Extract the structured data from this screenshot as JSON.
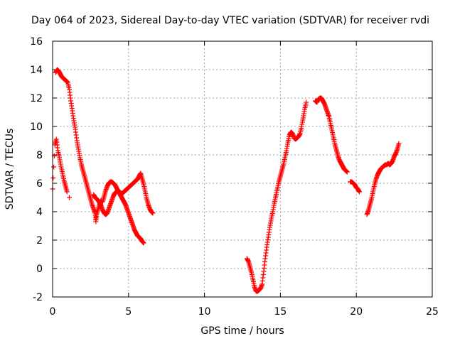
{
  "chart_data": {
    "type": "scatter",
    "title": "Day 064 of 2023, Sidereal Day-to-day VTEC variation (SDTVAR) for receiver rvdi",
    "xlabel": "GPS time / hours",
    "ylabel": "SDTVAR / TECUs",
    "xlim": [
      0,
      25
    ],
    "ylim": [
      -2,
      16
    ],
    "xticks": [
      "0",
      "5",
      "10",
      "15",
      "20",
      "25"
    ],
    "yticks": [
      "-2",
      "0",
      "2",
      "4",
      "6",
      "8",
      "10",
      "12",
      "14",
      "16"
    ],
    "grid": true,
    "marker": "+",
    "color": "#ff0000",
    "series": [
      {
        "points": [
          [
            0.0,
            5.6
          ],
          [
            0.15,
            8.7
          ],
          [
            0.25,
            9.1
          ],
          [
            0.35,
            8.3
          ],
          [
            0.45,
            7.8
          ],
          [
            0.55,
            7.2
          ],
          [
            0.65,
            6.7
          ],
          [
            0.75,
            6.2
          ],
          [
            0.85,
            5.8
          ],
          [
            0.95,
            5.4
          ],
          [
            1.1,
            5.0
          ]
        ]
      },
      {
        "points": [
          [
            0.2,
            13.8
          ],
          [
            0.3,
            14.0
          ],
          [
            0.4,
            13.9
          ],
          [
            0.5,
            13.7
          ],
          [
            0.6,
            13.5
          ],
          [
            0.7,
            13.4
          ],
          [
            0.8,
            13.3
          ],
          [
            0.9,
            13.2
          ],
          [
            1.0,
            13.1
          ],
          [
            1.1,
            12.6
          ],
          [
            1.2,
            11.8
          ],
          [
            1.3,
            11.1
          ],
          [
            1.4,
            10.4
          ],
          [
            1.5,
            9.8
          ],
          [
            1.6,
            9.0
          ],
          [
            1.7,
            8.4
          ],
          [
            1.8,
            7.8
          ],
          [
            1.9,
            7.3
          ],
          [
            2.0,
            6.9
          ],
          [
            2.1,
            6.5
          ],
          [
            2.2,
            6.1
          ],
          [
            2.3,
            5.7
          ],
          [
            2.4,
            5.3
          ],
          [
            2.5,
            4.9
          ],
          [
            2.6,
            4.5
          ],
          [
            2.7,
            4.2
          ],
          [
            2.8,
            3.9
          ],
          [
            2.85,
            3.3
          ],
          [
            2.9,
            3.8
          ],
          [
            3.0,
            4.2
          ],
          [
            3.1,
            4.6
          ],
          [
            3.2,
            4.8
          ]
        ]
      },
      {
        "points": [
          [
            2.7,
            5.2
          ],
          [
            2.8,
            5.0
          ],
          [
            2.9,
            4.9
          ],
          [
            3.0,
            4.8
          ],
          [
            3.1,
            4.6
          ],
          [
            3.2,
            4.4
          ],
          [
            3.3,
            4.1
          ],
          [
            3.4,
            3.9
          ],
          [
            3.5,
            3.8
          ],
          [
            3.6,
            3.9
          ],
          [
            3.7,
            4.2
          ],
          [
            3.8,
            4.5
          ],
          [
            3.9,
            4.8
          ],
          [
            4.0,
            5.1
          ],
          [
            4.1,
            5.3
          ],
          [
            4.2,
            5.4
          ],
          [
            4.3,
            5.5
          ],
          [
            4.4,
            5.4
          ],
          [
            4.5,
            5.3
          ],
          [
            4.6,
            5.3
          ],
          [
            4.7,
            5.4
          ],
          [
            4.8,
            5.5
          ],
          [
            4.9,
            5.6
          ],
          [
            5.0,
            5.7
          ],
          [
            5.1,
            5.8
          ],
          [
            5.2,
            5.9
          ],
          [
            5.3,
            6.0
          ],
          [
            5.4,
            6.1
          ],
          [
            5.5,
            6.2
          ],
          [
            5.6,
            6.3
          ],
          [
            5.7,
            6.5
          ],
          [
            5.8,
            6.7
          ],
          [
            5.9,
            6.3
          ],
          [
            6.0,
            5.9
          ],
          [
            6.1,
            5.4
          ],
          [
            6.2,
            4.9
          ],
          [
            6.3,
            4.5
          ],
          [
            6.4,
            4.2
          ],
          [
            6.5,
            4.0
          ],
          [
            6.6,
            3.9
          ]
        ]
      },
      {
        "points": [
          [
            3.3,
            4.7
          ],
          [
            3.4,
            5.1
          ],
          [
            3.5,
            5.5
          ],
          [
            3.6,
            5.8
          ],
          [
            3.7,
            6.0
          ],
          [
            3.8,
            6.1
          ],
          [
            3.9,
            6.1
          ],
          [
            4.0,
            6.0
          ],
          [
            4.1,
            5.9
          ],
          [
            4.2,
            5.7
          ],
          [
            4.3,
            5.5
          ],
          [
            4.4,
            5.3
          ],
          [
            4.5,
            5.1
          ],
          [
            4.6,
            4.9
          ],
          [
            4.7,
            4.7
          ],
          [
            4.8,
            4.5
          ],
          [
            4.9,
            4.2
          ],
          [
            5.0,
            3.9
          ],
          [
            5.1,
            3.6
          ],
          [
            5.2,
            3.3
          ],
          [
            5.3,
            3.0
          ],
          [
            5.4,
            2.7
          ],
          [
            5.5,
            2.5
          ],
          [
            5.6,
            2.3
          ],
          [
            5.7,
            2.2
          ],
          [
            5.8,
            2.1
          ],
          [
            5.9,
            1.9
          ],
          [
            6.0,
            1.8
          ]
        ]
      },
      {
        "points": [
          [
            12.8,
            0.7
          ],
          [
            12.9,
            0.5
          ],
          [
            13.0,
            0.1
          ],
          [
            13.1,
            -0.3
          ],
          [
            13.2,
            -0.8
          ],
          [
            13.3,
            -1.3
          ],
          [
            13.4,
            -1.6
          ],
          [
            13.5,
            -1.6
          ],
          [
            13.6,
            -1.5
          ],
          [
            13.7,
            -1.4
          ],
          [
            13.8,
            -1.1
          ],
          [
            13.9,
            -0.2
          ],
          [
            14.0,
            0.7
          ],
          [
            14.1,
            1.5
          ],
          [
            14.2,
            2.2
          ],
          [
            14.3,
            2.9
          ],
          [
            14.4,
            3.5
          ],
          [
            14.5,
            4.0
          ],
          [
            14.6,
            4.6
          ],
          [
            14.7,
            5.1
          ],
          [
            14.8,
            5.6
          ],
          [
            14.9,
            6.1
          ],
          [
            15.0,
            6.5
          ],
          [
            15.1,
            6.9
          ],
          [
            15.2,
            7.3
          ],
          [
            15.3,
            7.8
          ],
          [
            15.4,
            8.3
          ],
          [
            15.5,
            8.9
          ],
          [
            15.6,
            9.4
          ],
          [
            15.7,
            9.6
          ],
          [
            15.8,
            9.5
          ],
          [
            15.9,
            9.2
          ],
          [
            16.0,
            9.1
          ],
          [
            16.1,
            9.2
          ],
          [
            16.2,
            9.3
          ],
          [
            16.3,
            9.5
          ],
          [
            16.4,
            10.0
          ],
          [
            16.5,
            10.6
          ],
          [
            16.6,
            11.2
          ],
          [
            16.7,
            11.7
          ]
        ]
      },
      {
        "points": [
          [
            17.3,
            11.8
          ],
          [
            17.4,
            11.7
          ],
          [
            17.5,
            11.9
          ],
          [
            17.6,
            12.0
          ],
          [
            17.7,
            12.0
          ],
          [
            17.8,
            11.8
          ],
          [
            17.9,
            11.6
          ],
          [
            18.0,
            11.3
          ],
          [
            18.1,
            11.0
          ],
          [
            18.2,
            10.7
          ],
          [
            18.3,
            10.2
          ],
          [
            18.4,
            9.7
          ],
          [
            18.5,
            9.2
          ],
          [
            18.6,
            8.7
          ],
          [
            18.7,
            8.3
          ],
          [
            18.8,
            7.9
          ],
          [
            18.9,
            7.6
          ],
          [
            19.0,
            7.4
          ],
          [
            19.1,
            7.2
          ],
          [
            19.2,
            7.0
          ],
          [
            19.3,
            6.9
          ],
          [
            19.4,
            6.8
          ],
          [
            19.6,
            6.1
          ],
          [
            19.7,
            6.1
          ],
          [
            19.8,
            6.0
          ],
          [
            19.9,
            5.9
          ],
          [
            20.0,
            5.7
          ],
          [
            20.1,
            5.6
          ],
          [
            20.2,
            5.4
          ]
        ]
      },
      {
        "points": [
          [
            20.7,
            3.8
          ],
          [
            20.8,
            4.1
          ],
          [
            20.9,
            4.5
          ],
          [
            21.0,
            4.9
          ],
          [
            21.1,
            5.4
          ],
          [
            21.2,
            5.9
          ],
          [
            21.3,
            6.3
          ],
          [
            21.4,
            6.6
          ],
          [
            21.5,
            6.8
          ],
          [
            21.6,
            7.0
          ],
          [
            21.7,
            7.1
          ],
          [
            21.8,
            7.2
          ],
          [
            21.9,
            7.3
          ],
          [
            22.0,
            7.3
          ],
          [
            22.1,
            7.4
          ],
          [
            22.2,
            7.3
          ],
          [
            22.3,
            7.4
          ],
          [
            22.4,
            7.6
          ],
          [
            22.5,
            7.9
          ],
          [
            22.6,
            8.1
          ],
          [
            22.7,
            8.4
          ],
          [
            22.8,
            8.8
          ]
        ]
      }
    ]
  }
}
